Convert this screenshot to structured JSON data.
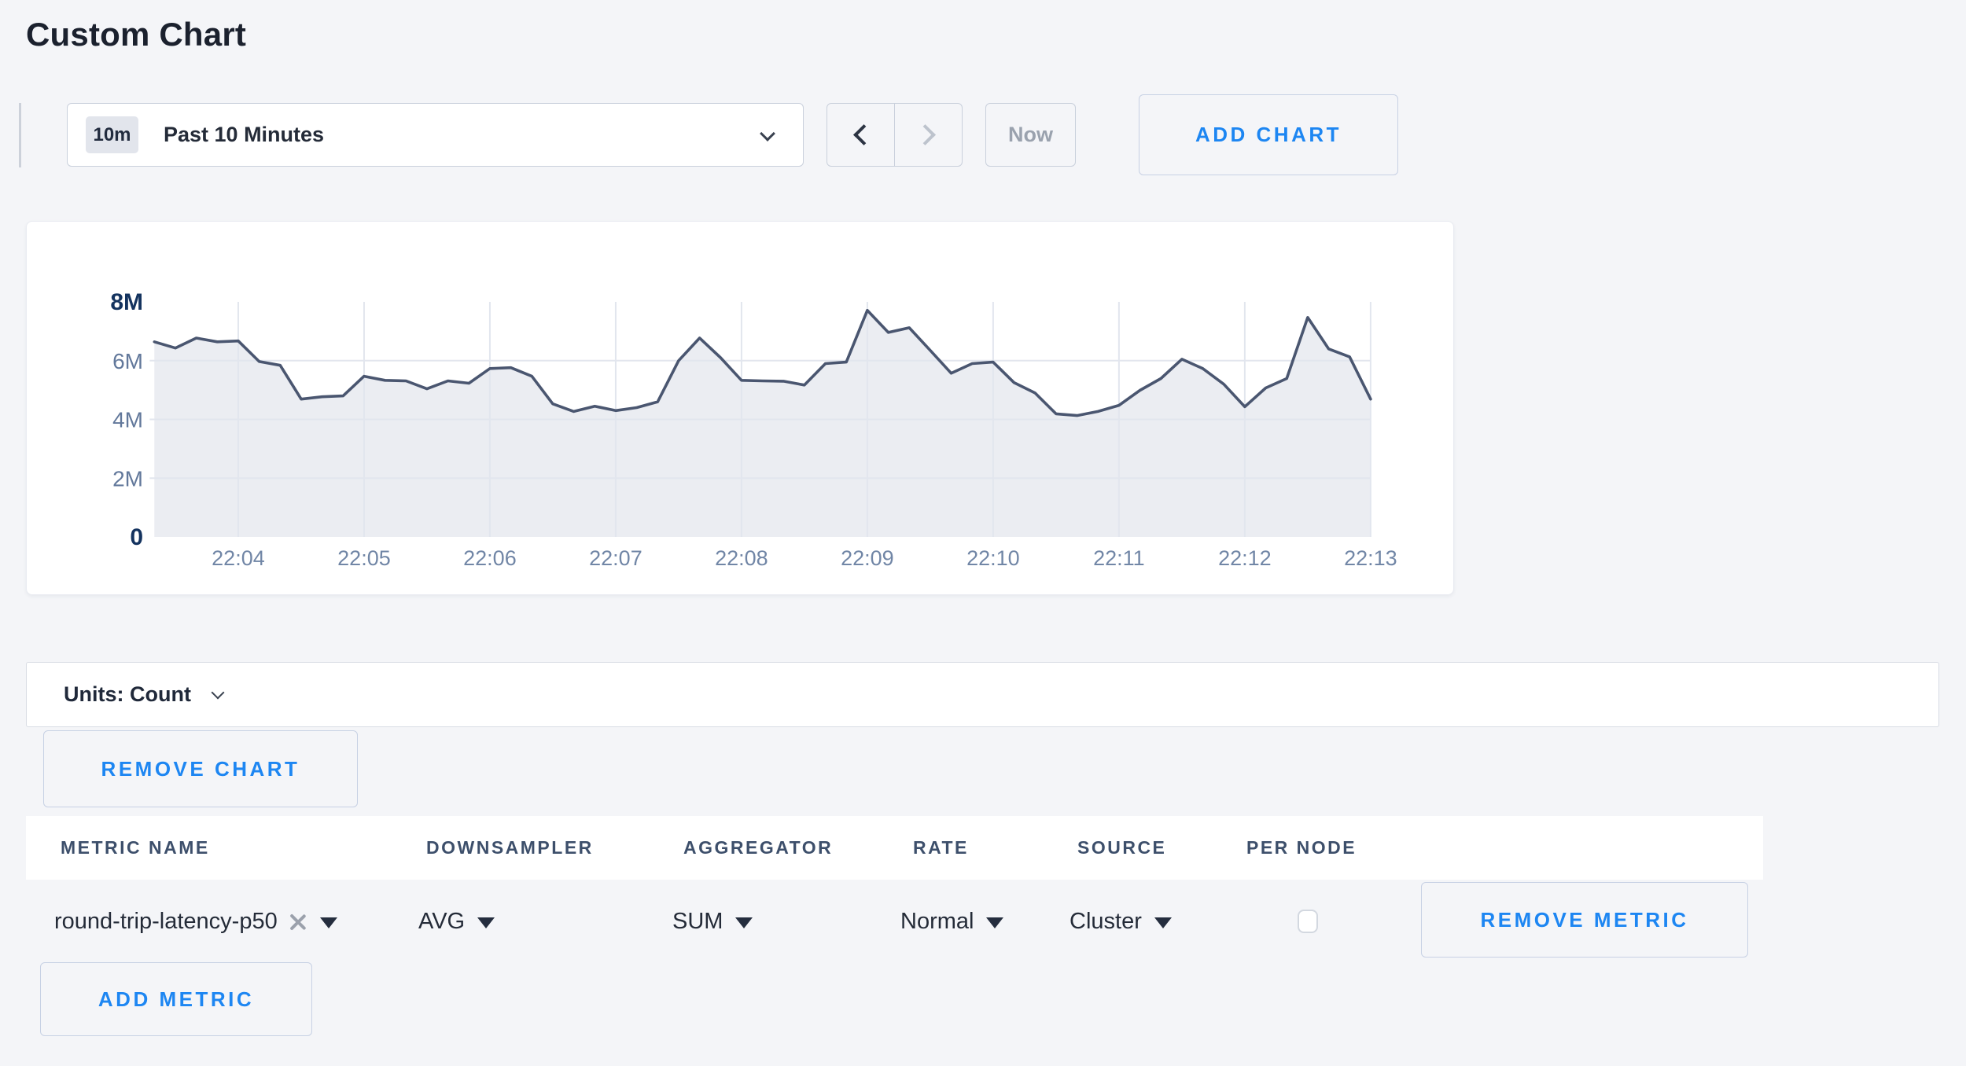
{
  "page": {
    "title": "Custom Chart"
  },
  "colors": {
    "accent_blue": "#1d86f2",
    "line": "#4a5670",
    "area_fill": "#ebedf2",
    "grid": "#e2e6ee",
    "axis_label": "#7186a6",
    "axis_label_bold": "#14335f"
  },
  "toolbar": {
    "time_range": {
      "badge": "10m",
      "label": "Past 10 Minutes"
    },
    "now_label": "Now",
    "add_chart_label": "ADD CHART"
  },
  "units_bar": {
    "label": "Units: Count"
  },
  "remove_chart_label": "REMOVE CHART",
  "metrics_table": {
    "headers": [
      "METRIC NAME",
      "DOWNSAMPLER",
      "AGGREGATOR",
      "RATE",
      "SOURCE",
      "PER NODE"
    ],
    "rows": [
      {
        "metric_name": "round-trip-latency-p50",
        "downsampler": "AVG",
        "aggregator": "SUM",
        "rate": "Normal",
        "source": "Cluster",
        "per_node_checked": false,
        "remove_label": "REMOVE METRIC"
      }
    ],
    "add_metric_label": "ADD METRIC"
  },
  "chart_data": {
    "type": "area",
    "title": "",
    "xlabel": "",
    "ylabel": "count",
    "x_start_time": "22:03:20",
    "x_interval_seconds": 10,
    "x_tick_labels": [
      "22:04",
      "22:05",
      "22:06",
      "22:07",
      "22:08",
      "22:09",
      "22:10",
      "22:11",
      "22:12",
      "22:13"
    ],
    "first_tick_index": 4,
    "tick_every": 6,
    "y_ticks": [
      {
        "value_m": 8,
        "label": "8M",
        "bold": true
      },
      {
        "value_m": 6,
        "label": "6M",
        "bold": false
      },
      {
        "value_m": 4,
        "label": "4M",
        "bold": false
      },
      {
        "value_m": 2,
        "label": "2M",
        "bold": false
      },
      {
        "value_m": 0,
        "label": "0",
        "bold": true
      }
    ],
    "ylim_m": [
      0,
      8
    ],
    "grid": true,
    "legend": "none",
    "values_m": [
      6.64,
      6.43,
      6.77,
      6.64,
      6.67,
      5.97,
      5.84,
      4.69,
      4.77,
      4.8,
      5.47,
      5.33,
      5.31,
      5.04,
      5.31,
      5.23,
      5.73,
      5.76,
      5.47,
      4.53,
      4.27,
      4.45,
      4.3,
      4.4,
      4.6,
      6.0,
      6.77,
      6.1,
      5.33,
      5.31,
      5.3,
      5.17,
      5.9,
      5.95,
      7.71,
      6.96,
      7.12,
      6.35,
      5.57,
      5.9,
      5.95,
      5.25,
      4.9,
      4.19,
      4.13,
      4.27,
      4.48,
      4.99,
      5.39,
      6.05,
      5.73,
      5.2,
      4.43,
      5.07,
      5.39,
      7.47,
      6.4,
      6.13,
      4.69
    ]
  }
}
